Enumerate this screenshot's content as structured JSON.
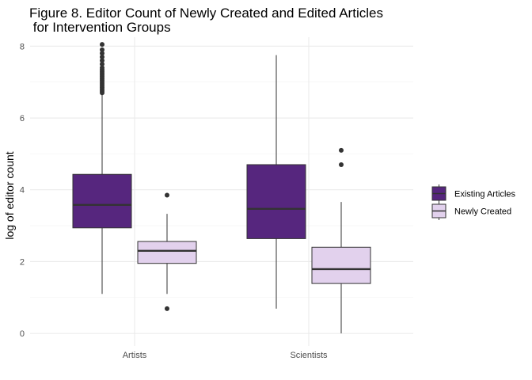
{
  "chart_data": {
    "type": "boxplot",
    "title_lines": [
      "Figure 8. Editor Count of Newly Created and Edited Articles",
      " for Intervention Groups"
    ],
    "xlabel": "",
    "ylabel": "log of editor count",
    "categories": [
      "Artists",
      "Scientists"
    ],
    "ylim": [
      -0.35,
      8.25
    ],
    "yticks": [
      0,
      2,
      4,
      6,
      8
    ],
    "grid": true,
    "legend_position": "right",
    "series": [
      {
        "name": "Existing Articles",
        "color": "#56267e",
        "boxes": [
          {
            "category": "Artists",
            "min": 1.1,
            "q1": 2.94,
            "median": 3.58,
            "q3": 4.43,
            "max": 6.65,
            "outliers": [
              6.7,
              6.75,
              6.8,
              6.85,
              6.9,
              6.95,
              7.0,
              7.05,
              7.1,
              7.15,
              7.2,
              7.25,
              7.3,
              7.35,
              7.4,
              7.5,
              7.6,
              7.7,
              7.8,
              7.9,
              8.05
            ]
          },
          {
            "category": "Scientists",
            "min": 0.69,
            "q1": 2.64,
            "median": 3.47,
            "q3": 4.7,
            "max": 7.75,
            "outliers": []
          }
        ]
      },
      {
        "name": "Newly Created",
        "color": "#e2d1ed",
        "boxes": [
          {
            "category": "Artists",
            "min": 1.1,
            "q1": 1.95,
            "median": 2.3,
            "q3": 2.56,
            "max": 3.33,
            "outliers": [
              0.69,
              3.85
            ]
          },
          {
            "category": "Scientists",
            "min": 0.0,
            "q1": 1.39,
            "median": 1.79,
            "q3": 2.4,
            "max": 3.66,
            "outliers": [
              4.7,
              5.1
            ]
          }
        ]
      }
    ]
  }
}
